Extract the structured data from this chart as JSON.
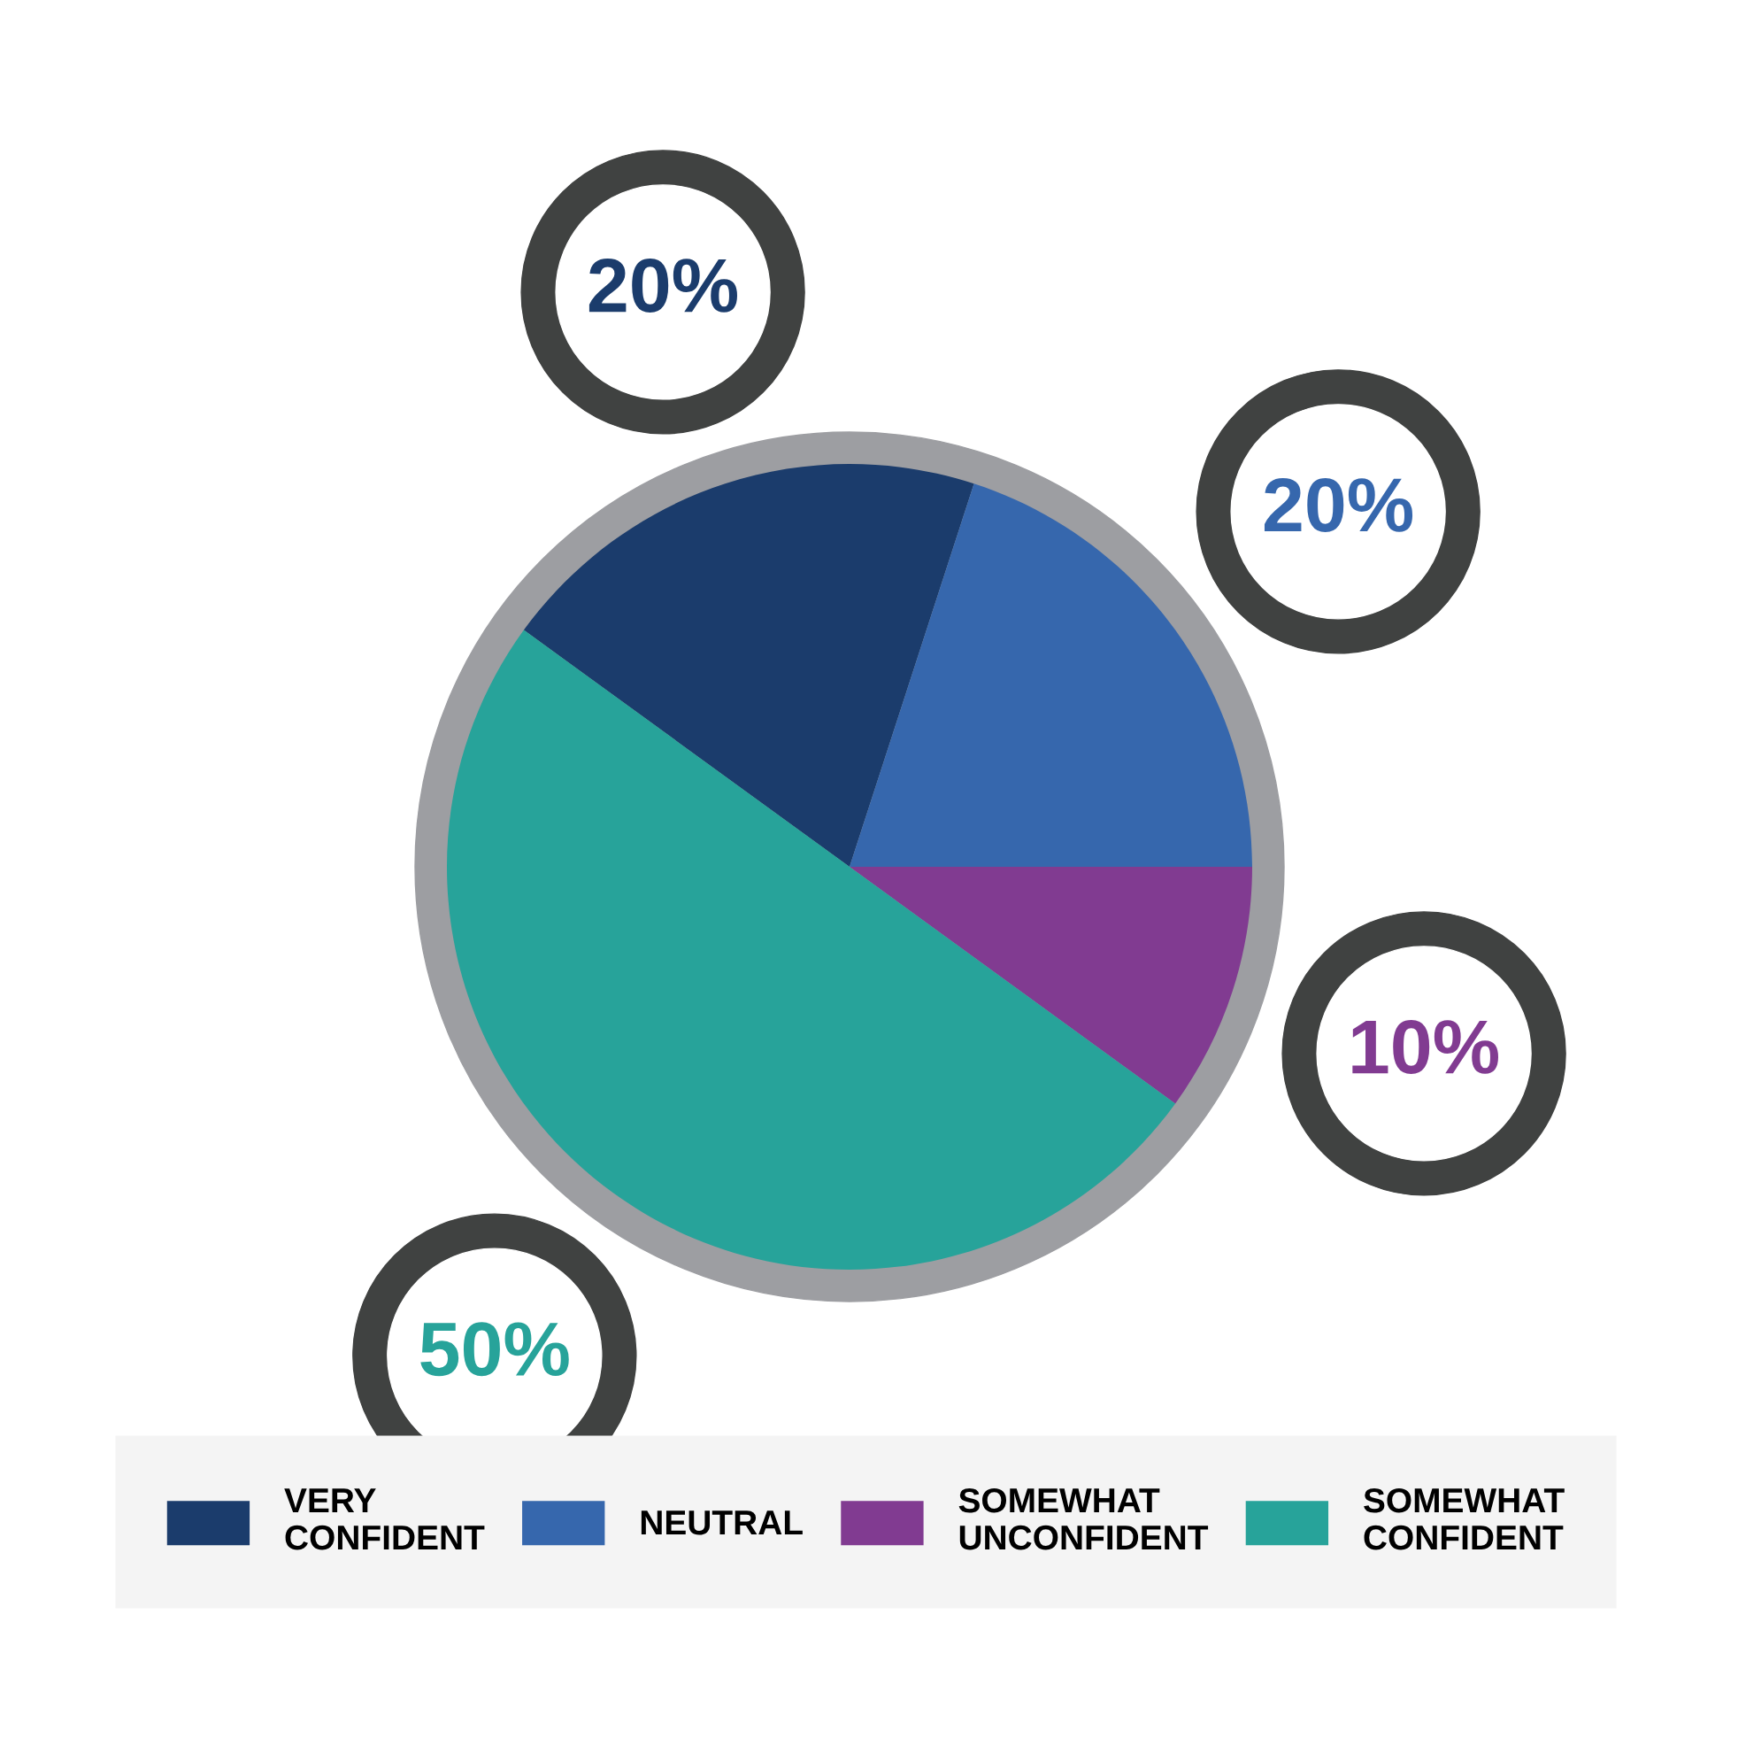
{
  "chart_data": {
    "type": "pie",
    "categories": [
      "VERY\nCONFIDENT",
      "NEUTRAL",
      "SOMEWHAT\nUNCONFIDENT",
      "SOMEWHAT\nCONFIDENT"
    ],
    "values": [
      20,
      20,
      10,
      50
    ],
    "colors": [
      "#1b3c6c",
      "#3667ad",
      "#813b91",
      "#27a39a"
    ],
    "value_labels": [
      "20%",
      "20%",
      "10%",
      "50%"
    ],
    "legend": "bottom"
  }
}
